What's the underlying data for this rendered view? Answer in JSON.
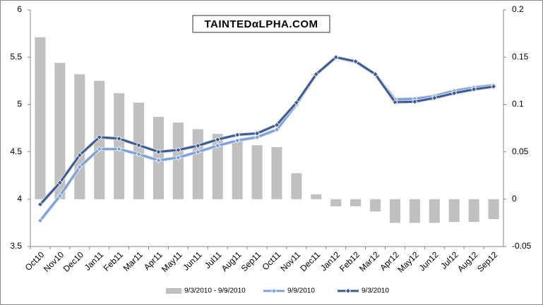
{
  "chart_data": {
    "type": "combo",
    "watermark": "TAINTEDαLPHA.COM",
    "categories": [
      "Oct10",
      "Nov10",
      "Dec10",
      "Jan11",
      "Feb11",
      "Mar11",
      "Apr11",
      "May11",
      "Jun11",
      "Jul11",
      "Aug11",
      "Sep11",
      "Oct11",
      "Nov11",
      "Dec11",
      "Jan12",
      "Feb12",
      "Mar12",
      "Apr12",
      "May12",
      "Jun12",
      "Jul12",
      "Aug12",
      "Sep12"
    ],
    "series": [
      {
        "name": "9/3/2010 - 9/9/2010",
        "type": "bar",
        "axis": "y2",
        "color": "#c0c0c0",
        "values": [
          0.171,
          0.144,
          0.132,
          0.125,
          0.112,
          0.102,
          0.087,
          0.081,
          0.074,
          0.069,
          0.0625,
          0.057,
          0.055,
          0.0275,
          0.005,
          -0.0075,
          -0.0075,
          -0.013,
          -0.025,
          -0.025,
          -0.025,
          -0.024,
          -0.024,
          -0.021
        ]
      },
      {
        "name": "9/9/2010",
        "type": "line",
        "color": "#7ea0d8",
        "values": [
          3.775,
          4.035,
          4.34,
          4.53,
          4.53,
          4.475,
          4.41,
          4.44,
          4.5,
          4.565,
          4.62,
          4.655,
          4.735,
          5.0,
          5.32,
          5.495,
          5.45,
          5.315,
          5.055,
          5.06,
          5.09,
          5.145,
          5.18,
          5.205
        ]
      },
      {
        "name": "9/3/2010",
        "type": "line",
        "color": "#3f5a8f",
        "values": [
          3.945,
          4.175,
          4.465,
          4.655,
          4.64,
          4.57,
          4.5,
          4.52,
          4.565,
          4.63,
          4.68,
          4.695,
          4.785,
          5.02,
          5.32,
          5.5,
          5.455,
          5.32,
          5.025,
          5.03,
          5.07,
          5.12,
          5.16,
          5.19
        ]
      }
    ],
    "ylim": [
      3.5,
      6
    ],
    "yticks": [
      3.5,
      4,
      4.5,
      5,
      5.5,
      6
    ],
    "y2lim": [
      -0.05,
      0.2
    ],
    "y2ticks": [
      -0.05,
      0,
      0.05,
      0.1,
      0.15,
      0.2
    ],
    "grid": false,
    "legend": "bottom"
  }
}
